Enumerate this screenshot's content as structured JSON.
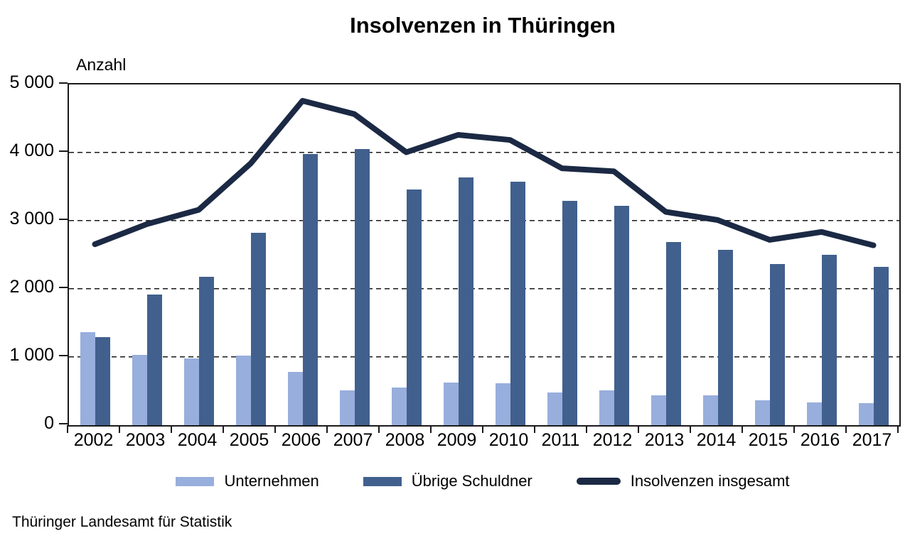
{
  "source": "Thüringer Landesamt für Statistik",
  "chart_data": {
    "type": "combo-bar-line",
    "title": "Insolvenzen in Thüringen",
    "ylabel": "Anzahl",
    "xlabel": "",
    "ylim": [
      0,
      5000
    ],
    "ytick_step": 1000,
    "yticks": [
      "0",
      "1 000",
      "2 000",
      "3 000",
      "4 000",
      "5 000"
    ],
    "grid": true,
    "legend_position": "bottom",
    "categories": [
      "2002",
      "2003",
      "2004",
      "2005",
      "2006",
      "2007",
      "2008",
      "2009",
      "2010",
      "2011",
      "2012",
      "2013",
      "2014",
      "2015",
      "2016",
      "2017"
    ],
    "series": [
      {
        "name": "Unternehmen",
        "type": "bar",
        "color": "#98AEDC",
        "values": [
          1365,
          1030,
          980,
          1020,
          780,
          510,
          550,
          620,
          615,
          480,
          510,
          440,
          435,
          360,
          330,
          320
        ]
      },
      {
        "name": "Übrige Schuldner",
        "type": "bar",
        "color": "#41608D",
        "values": [
          1290,
          1920,
          2180,
          2820,
          3980,
          4055,
          3455,
          3640,
          3570,
          3290,
          3215,
          2690,
          2575,
          2360,
          2505,
          2320
        ]
      },
      {
        "name": "Insolvenzen insgesamt",
        "type": "line",
        "color": "#1B2944",
        "values": [
          2655,
          2950,
          3160,
          3840,
          4760,
          4565,
          4005,
          4260,
          4185,
          3770,
          3725,
          3130,
          3010,
          2720,
          2835,
          2640
        ]
      }
    ]
  }
}
